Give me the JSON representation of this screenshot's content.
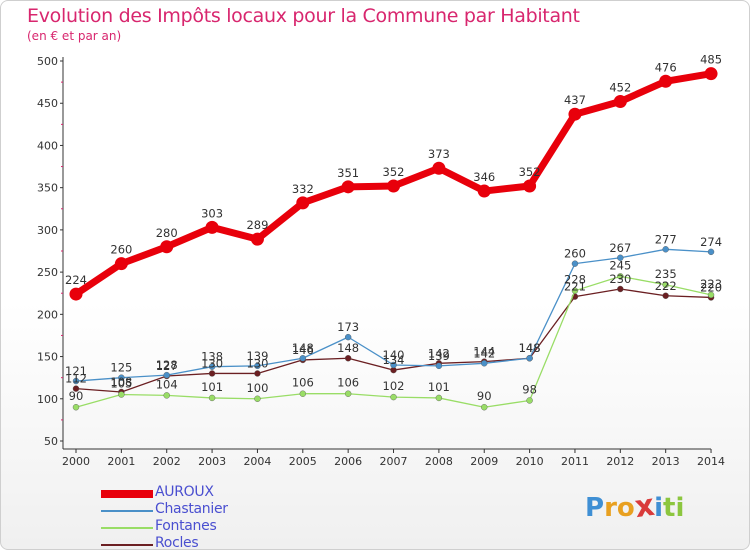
{
  "chart_data": {
    "type": "line",
    "title": "Evolution des Impôts locaux pour la Commune par Habitant",
    "subtitle": "(en € et par an)",
    "xlabel": "",
    "ylabel": "",
    "x": [
      "2000",
      "2001",
      "2002",
      "2003",
      "2004",
      "2005",
      "2006",
      "2007",
      "2008",
      "2009",
      "2010",
      "2011",
      "2012",
      "2013",
      "2014"
    ],
    "ylim": [
      50,
      500
    ],
    "yticks": [
      50,
      100,
      150,
      200,
      250,
      300,
      350,
      400,
      450,
      500
    ],
    "grid": false,
    "legend_position": "bottom-left",
    "series": [
      {
        "name": "AUROUX",
        "color": "#e8000b",
        "values": [
          224,
          260,
          280,
          303,
          289,
          332,
          351,
          352,
          373,
          346,
          352,
          437,
          452,
          476,
          485
        ]
      },
      {
        "name": "Chastanier",
        "color": "#4a90c8",
        "values": [
          121,
          125,
          128,
          138,
          139,
          148,
          173,
          140,
          139,
          142,
          148,
          260,
          267,
          277,
          274
        ]
      },
      {
        "name": "Fontanes",
        "color": "#99dd66",
        "values": [
          90,
          105,
          104,
          101,
          100,
          106,
          106,
          102,
          101,
          90,
          98,
          228,
          245,
          235,
          223
        ]
      },
      {
        "name": "Rocles",
        "color": "#6b1f22",
        "values": [
          112,
          108,
          127,
          130,
          130,
          146,
          148,
          134,
          142,
          144,
          148,
          221,
          230,
          222,
          220
        ]
      }
    ]
  },
  "brand": {
    "letters": [
      "P",
      "r",
      "o",
      "x",
      "i",
      "t",
      "i"
    ],
    "colors": [
      "#3f8fd4",
      "#e8a020",
      "#e8a020",
      "#d93b3b",
      "#3f8fd4",
      "#8cc63f",
      "#8cc63f"
    ]
  }
}
